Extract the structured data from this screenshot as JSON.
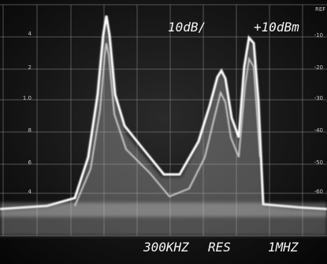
{
  "header": {
    "scale": "10dB/",
    "reference": "+10dBm",
    "ref_label": "REF"
  },
  "footer": {
    "span": "300KHZ",
    "res_label": "RES",
    "resolution": "1MHZ"
  },
  "left_scale": [
    "4",
    "2",
    "1.0",
    "8",
    "6",
    "4"
  ],
  "right_scale": [
    "-10",
    "-20",
    "-30",
    "-40",
    "-50",
    "-60"
  ]
}
